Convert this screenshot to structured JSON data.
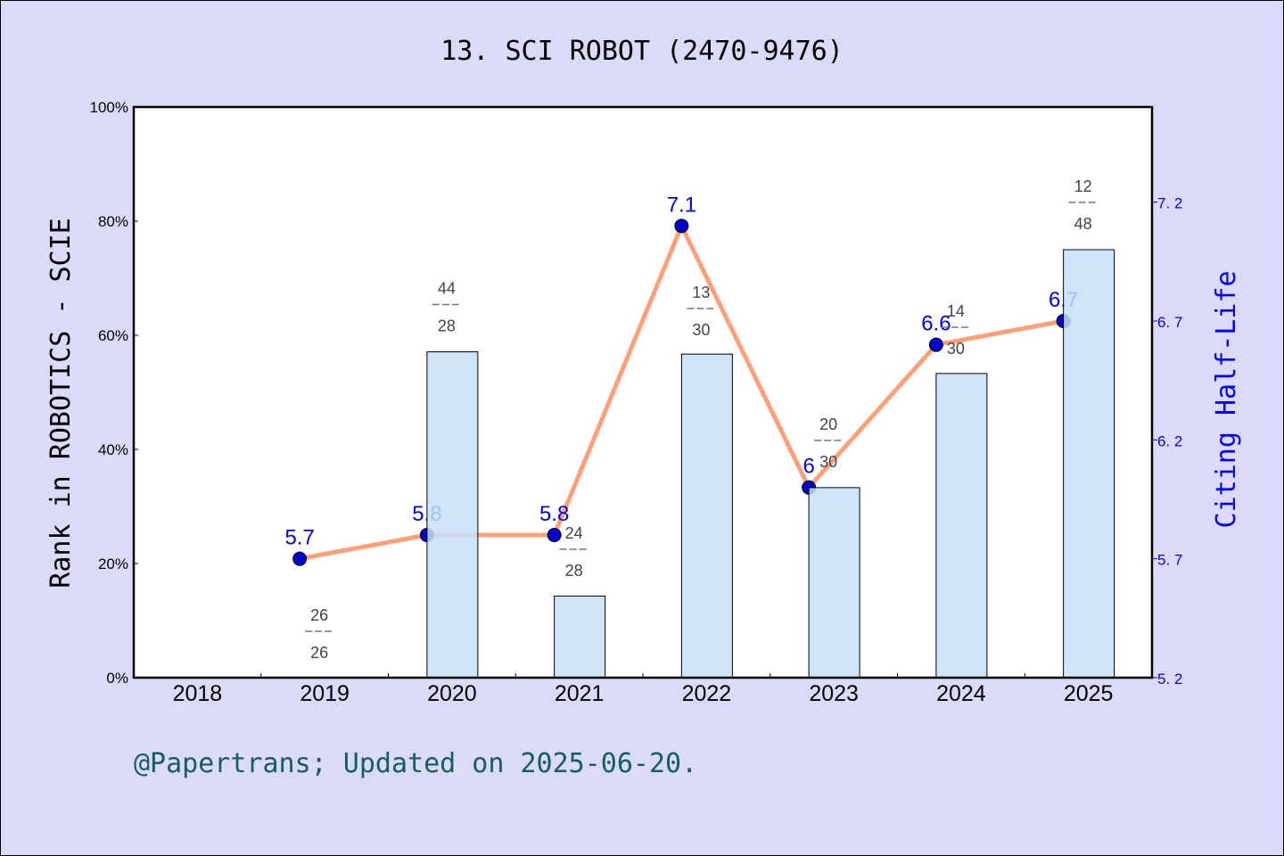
{
  "chart_data": {
    "type": "bar+line",
    "title": "13. SCI ROBOT (2470-9476)",
    "categories": [
      "2018",
      "2019",
      "2020",
      "2021",
      "2022",
      "2023",
      "2024",
      "2025"
    ],
    "ylabel": "Rank in ROBOTICS - SCIE",
    "ylabel_right": "Citing Half-Life",
    "ylim": [
      0,
      100
    ],
    "ylim_right": [
      5.2,
      7.6
    ],
    "yticks": [
      "0%",
      "20%",
      "40%",
      "60%",
      "80%",
      "100%"
    ],
    "yticks_right": [
      "5.2",
      "5.7",
      "6.2",
      "6.7",
      "7.2"
    ],
    "bars": {
      "values": [
        null,
        0,
        57.1,
        14.3,
        56.7,
        33.3,
        53.3,
        75.0
      ],
      "rank_labels": [
        null,
        {
          "top": "26",
          "bottom": "26"
        },
        {
          "top": "44",
          "bottom": "28"
        },
        {
          "top": "24",
          "bottom": "28"
        },
        {
          "top": "13",
          "bottom": "30"
        },
        {
          "top": "20",
          "bottom": "30"
        },
        {
          "top": "14",
          "bottom": "30"
        },
        {
          "top": "12",
          "bottom": "48"
        }
      ],
      "color": "#c5e0f7"
    },
    "line": {
      "values": [
        null,
        5.7,
        5.8,
        5.8,
        7.1,
        6.0,
        6.6,
        6.7
      ],
      "labels": [
        null,
        "5.7",
        "5.8",
        "5.8",
        "7.1",
        "6",
        "6.6",
        "6.7"
      ],
      "color": "#ffa07a",
      "marker_color": "#0000cc"
    },
    "grid": false
  },
  "footer": "@Papertrans; Updated on 2025-06-20."
}
